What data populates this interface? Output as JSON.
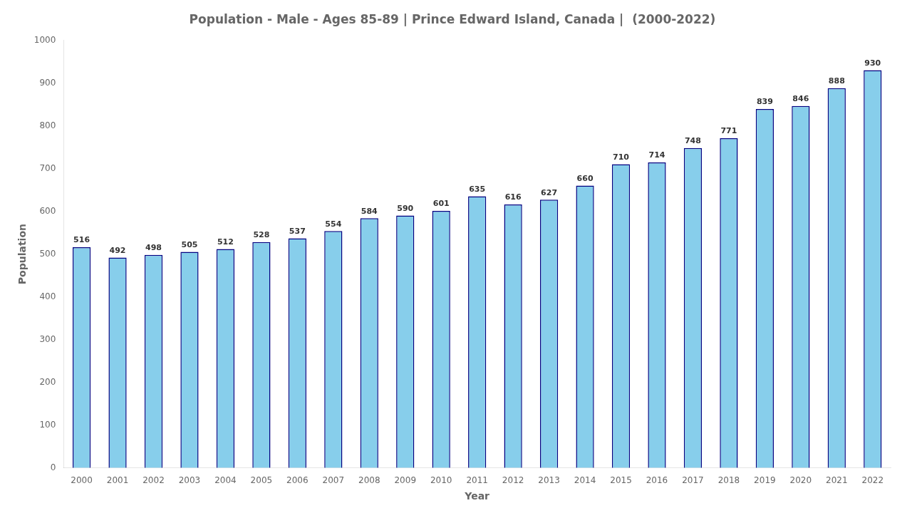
{
  "chart_data": {
    "type": "bar",
    "title": "Population - Male - Ages 85-89 | Prince Edward Island, Canada |  (2000-2022)",
    "x_label": "Year",
    "y_label": "Population",
    "categories": [
      "2000",
      "2001",
      "2002",
      "2003",
      "2004",
      "2005",
      "2006",
      "2007",
      "2008",
      "2009",
      "2010",
      "2011",
      "2012",
      "2013",
      "2014",
      "2015",
      "2016",
      "2017",
      "2018",
      "2019",
      "2020",
      "2021",
      "2022"
    ],
    "values": [
      516,
      492,
      498,
      505,
      512,
      528,
      537,
      554,
      584,
      590,
      601,
      635,
      616,
      627,
      660,
      710,
      714,
      748,
      771,
      839,
      846,
      888,
      930
    ],
    "color": "#87ceeb",
    "ylim": [
      0,
      1000
    ],
    "yticks": [
      0,
      100,
      200,
      300,
      400,
      500,
      600,
      700,
      800,
      900,
      1000
    ],
    "grid": false,
    "data_labels": true
  }
}
